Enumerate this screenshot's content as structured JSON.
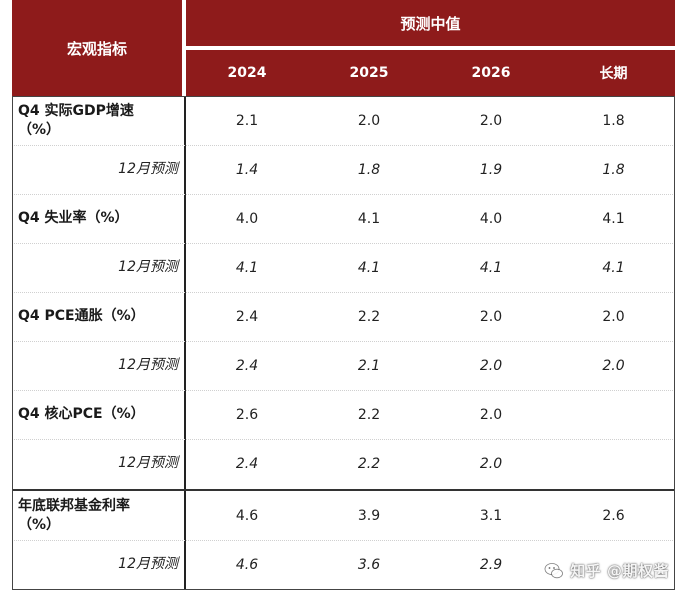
{
  "header": {
    "macro_label": "宏观指标",
    "median_label": "预测中值",
    "years": [
      "2024",
      "2025",
      "2026",
      "长期"
    ]
  },
  "rows": [
    {
      "label": "Q4 实际GDP增速\n（%）",
      "values": [
        "2.1",
        "2.0",
        "2.0",
        "1.8"
      ],
      "sub": false
    },
    {
      "label": "12月预测",
      "values": [
        "1.4",
        "1.8",
        "1.9",
        "1.8"
      ],
      "sub": true
    },
    {
      "label": "Q4 失业率（%）",
      "values": [
        "4.0",
        "4.1",
        "4.0",
        "4.1"
      ],
      "sub": false
    },
    {
      "label": "12月预测",
      "values": [
        "4.1",
        "4.1",
        "4.1",
        "4.1"
      ],
      "sub": true
    },
    {
      "label": "Q4 PCE通胀（%）",
      "values": [
        "2.4",
        "2.2",
        "2.0",
        "2.0"
      ],
      "sub": false
    },
    {
      "label": "12月预测",
      "values": [
        "2.4",
        "2.1",
        "2.0",
        "2.0"
      ],
      "sub": true
    },
    {
      "label": "Q4 核心PCE（%）",
      "values": [
        "2.6",
        "2.2",
        "2.0",
        ""
      ],
      "sub": false
    },
    {
      "label": "12月预测",
      "values": [
        "2.4",
        "2.2",
        "2.0",
        ""
      ],
      "sub": true
    },
    {
      "label": "年底联邦基金利率\n（%）",
      "values": [
        "4.6",
        "3.9",
        "3.1",
        "2.6"
      ],
      "sub": false
    },
    {
      "label": "12月预测",
      "values": [
        "4.6",
        "3.6",
        "2.9",
        ""
      ],
      "sub": true
    }
  ],
  "watermark": {
    "text": "知乎 @期权酱",
    "icon": "wechat-bubble-icon"
  },
  "colors": {
    "header_bg": "#8e1b1b",
    "header_text": "#ffffff"
  }
}
